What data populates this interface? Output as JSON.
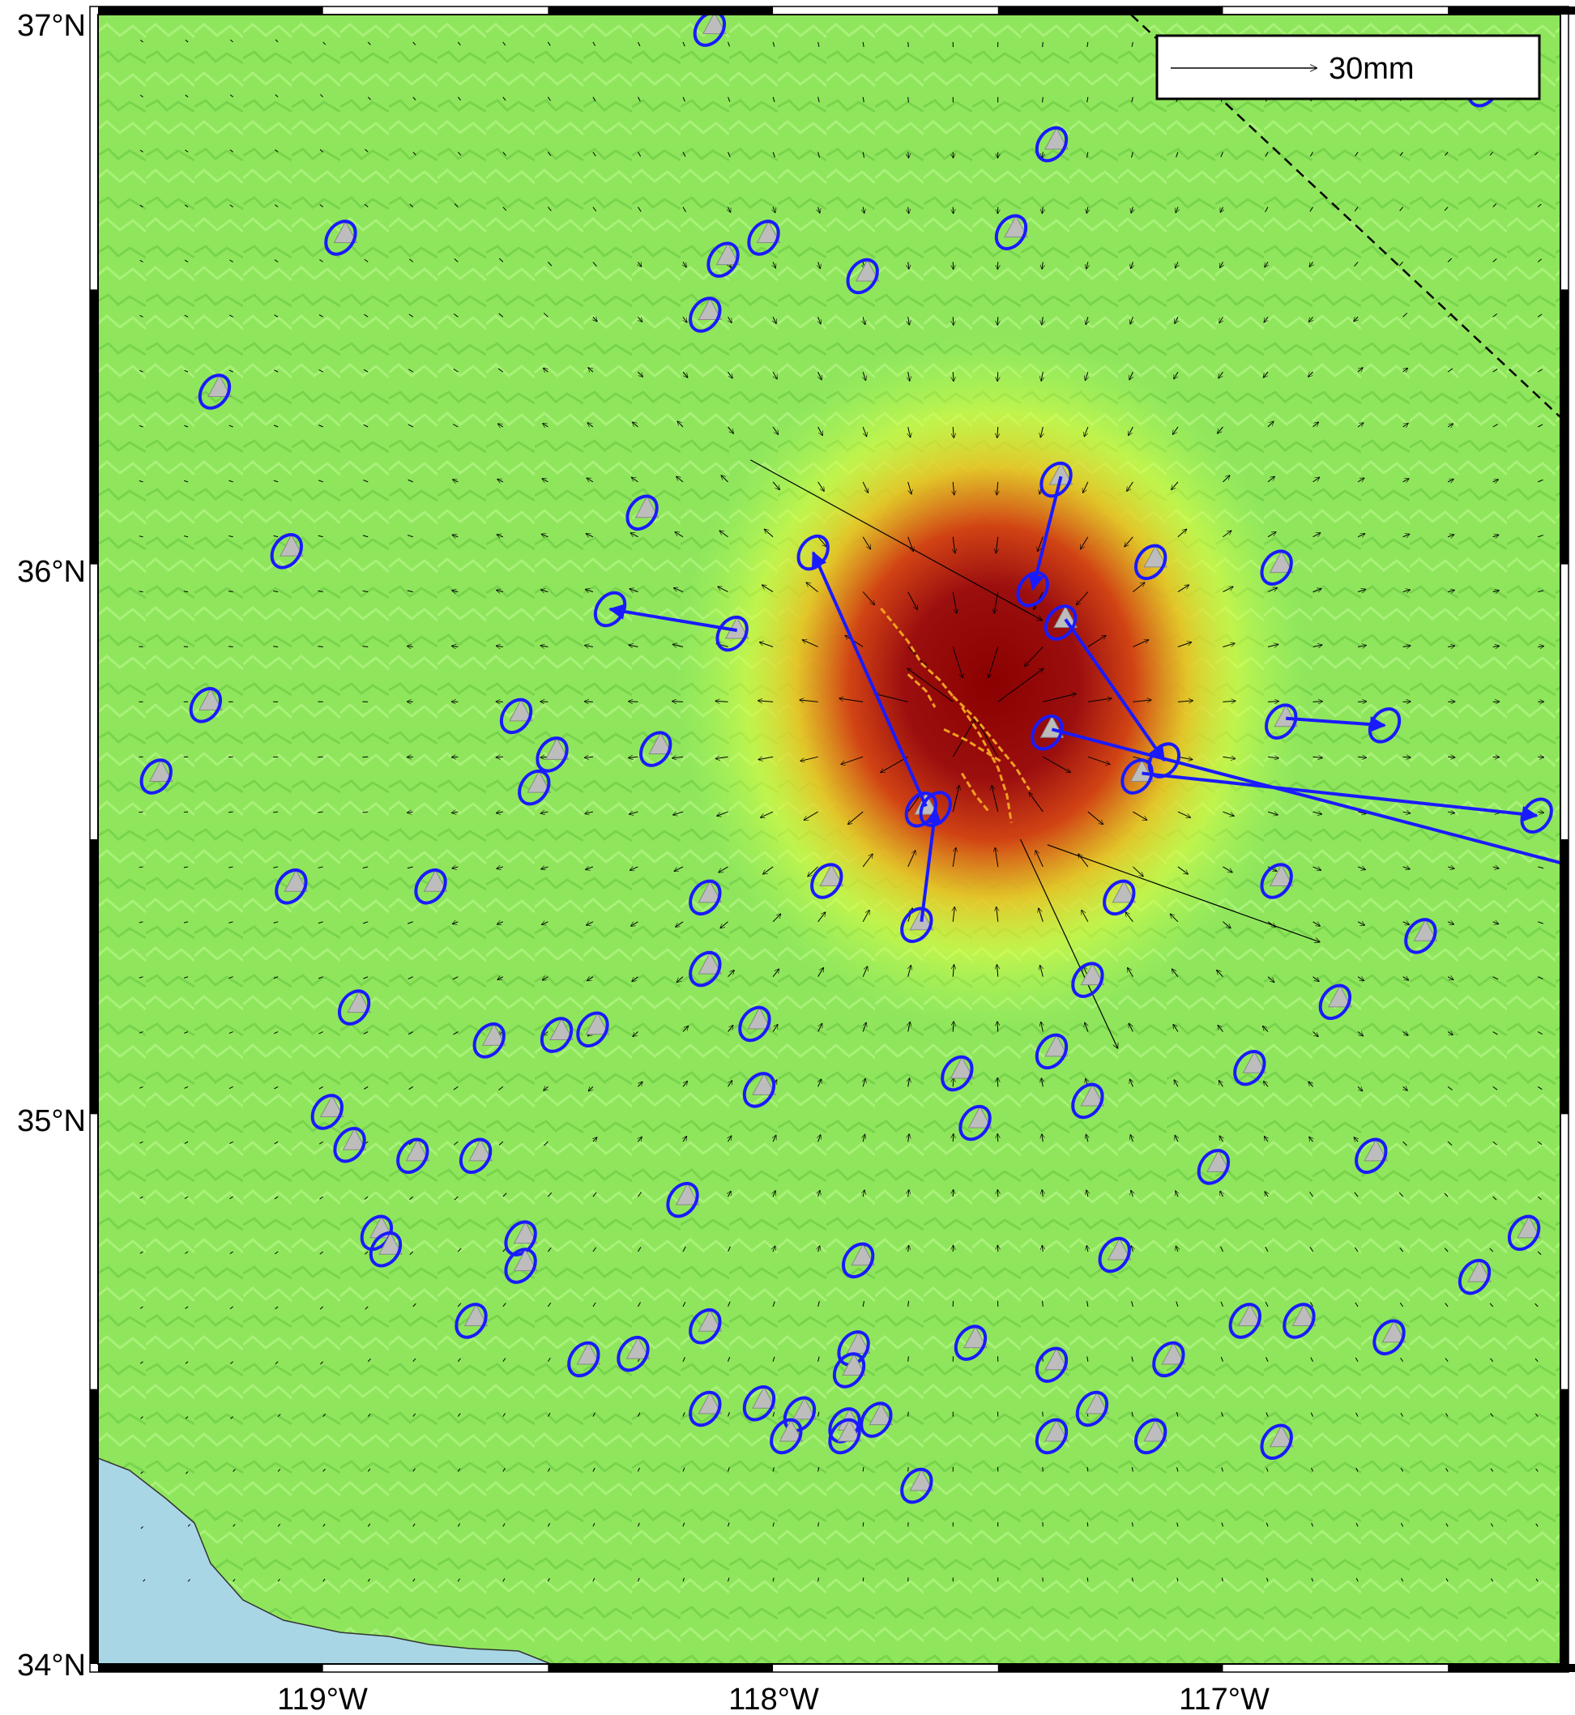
{
  "map": {
    "lon_range": [
      -119.5,
      -116.25
    ],
    "lat_range": [
      34.0,
      37.0
    ],
    "lat_labels": [
      "37°N",
      "36°N",
      "35°N",
      "34°N"
    ],
    "lon_labels": [
      "119°W",
      "118°W",
      "117°W"
    ],
    "scale_label": "30mm",
    "colors": {
      "land_base": "#8fe65c",
      "ocean": "#a9d6e5",
      "station": "#bdbdbd",
      "ellipse": "#1a1aff",
      "fault_trace": "#f0a020",
      "model_arrow": "#000000",
      "core_high": "#8b0000",
      "mid": "#cc2200",
      "low": "#ffff33"
    },
    "epicenter": {
      "lon": -117.55,
      "lat": 35.72
    }
  },
  "stations": [
    {
      "lon": -118.13,
      "lat": 36.98
    },
    {
      "lon": -117.37,
      "lat": 36.77
    },
    {
      "lon": -116.41,
      "lat": 36.87
    },
    {
      "lon": -118.95,
      "lat": 36.6
    },
    {
      "lon": -118.1,
      "lat": 36.56
    },
    {
      "lon": -118.01,
      "lat": 36.6
    },
    {
      "lon": -117.79,
      "lat": 36.53
    },
    {
      "lon": -117.46,
      "lat": 36.61
    },
    {
      "lon": -118.14,
      "lat": 36.46
    },
    {
      "lon": -119.23,
      "lat": 36.32
    },
    {
      "lon": -117.36,
      "lat": 36.16
    },
    {
      "lon": -118.28,
      "lat": 36.1
    },
    {
      "lon": -119.07,
      "lat": 36.03
    },
    {
      "lon": -117.15,
      "lat": 36.01
    },
    {
      "lon": -116.87,
      "lat": 36.0
    },
    {
      "lon": -118.08,
      "lat": 35.88
    },
    {
      "lon": -117.35,
      "lat": 35.9
    },
    {
      "lon": -119.25,
      "lat": 35.75
    },
    {
      "lon": -118.56,
      "lat": 35.73
    },
    {
      "lon": -116.86,
      "lat": 35.72
    },
    {
      "lon": -117.38,
      "lat": 35.7
    },
    {
      "lon": -118.48,
      "lat": 35.66
    },
    {
      "lon": -118.25,
      "lat": 35.67
    },
    {
      "lon": -119.36,
      "lat": 35.62
    },
    {
      "lon": -117.18,
      "lat": 35.62
    },
    {
      "lon": -118.52,
      "lat": 35.6
    },
    {
      "lon": -117.66,
      "lat": 35.56
    },
    {
      "lon": -117.87,
      "lat": 35.43
    },
    {
      "lon": -116.87,
      "lat": 35.43
    },
    {
      "lon": -119.06,
      "lat": 35.42
    },
    {
      "lon": -118.75,
      "lat": 35.42
    },
    {
      "lon": -117.22,
      "lat": 35.4
    },
    {
      "lon": -118.14,
      "lat": 35.4
    },
    {
      "lon": -117.67,
      "lat": 35.35
    },
    {
      "lon": -116.55,
      "lat": 35.33
    },
    {
      "lon": -117.29,
      "lat": 35.25
    },
    {
      "lon": -118.14,
      "lat": 35.27
    },
    {
      "lon": -116.74,
      "lat": 35.21
    },
    {
      "lon": -118.92,
      "lat": 35.2
    },
    {
      "lon": -118.03,
      "lat": 35.17
    },
    {
      "lon": -118.39,
      "lat": 35.16
    },
    {
      "lon": -118.47,
      "lat": 35.15
    },
    {
      "lon": -118.62,
      "lat": 35.14
    },
    {
      "lon": -117.37,
      "lat": 35.12
    },
    {
      "lon": -117.58,
      "lat": 35.08
    },
    {
      "lon": -116.93,
      "lat": 35.09
    },
    {
      "lon": -118.02,
      "lat": 35.05
    },
    {
      "lon": -117.29,
      "lat": 35.03
    },
    {
      "lon": -117.54,
      "lat": 34.99
    },
    {
      "lon": -118.98,
      "lat": 35.01
    },
    {
      "lon": -118.93,
      "lat": 34.95
    },
    {
      "lon": -118.79,
      "lat": 34.93
    },
    {
      "lon": -118.65,
      "lat": 34.93
    },
    {
      "lon": -117.01,
      "lat": 34.91
    },
    {
      "lon": -116.66,
      "lat": 34.93
    },
    {
      "lon": -118.19,
      "lat": 34.85
    },
    {
      "lon": -118.87,
      "lat": 34.79
    },
    {
      "lon": -118.85,
      "lat": 34.76
    },
    {
      "lon": -118.55,
      "lat": 34.78
    },
    {
      "lon": -118.55,
      "lat": 34.73
    },
    {
      "lon": -117.8,
      "lat": 34.74
    },
    {
      "lon": -117.23,
      "lat": 34.75
    },
    {
      "lon": -116.32,
      "lat": 34.79
    },
    {
      "lon": -116.43,
      "lat": 34.71
    },
    {
      "lon": -118.66,
      "lat": 34.63
    },
    {
      "lon": -118.14,
      "lat": 34.62
    },
    {
      "lon": -116.94,
      "lat": 34.63
    },
    {
      "lon": -116.82,
      "lat": 34.63
    },
    {
      "lon": -118.3,
      "lat": 34.57
    },
    {
      "lon": -118.41,
      "lat": 34.56
    },
    {
      "lon": -117.81,
      "lat": 34.58
    },
    {
      "lon": -117.55,
      "lat": 34.59
    },
    {
      "lon": -117.37,
      "lat": 34.55
    },
    {
      "lon": -117.11,
      "lat": 34.56
    },
    {
      "lon": -116.62,
      "lat": 34.6
    },
    {
      "lon": -117.82,
      "lat": 34.54
    },
    {
      "lon": -118.14,
      "lat": 34.47
    },
    {
      "lon": -118.02,
      "lat": 34.48
    },
    {
      "lon": -117.93,
      "lat": 34.46
    },
    {
      "lon": -117.83,
      "lat": 34.44
    },
    {
      "lon": -117.76,
      "lat": 34.45
    },
    {
      "lon": -117.28,
      "lat": 34.47
    },
    {
      "lon": -117.96,
      "lat": 34.42
    },
    {
      "lon": -117.83,
      "lat": 34.42
    },
    {
      "lon": -117.37,
      "lat": 34.42
    },
    {
      "lon": -117.15,
      "lat": 34.42
    },
    {
      "lon": -116.87,
      "lat": 34.41
    },
    {
      "lon": -117.67,
      "lat": 34.33
    }
  ],
  "observed_vectors": [
    {
      "lon": -117.36,
      "lat": 36.16,
      "ve": -2.0,
      "vn": -8.0
    },
    {
      "lon": -118.08,
      "lat": 35.88,
      "ve": -9.0,
      "vn": 1.5
    },
    {
      "lon": -117.35,
      "lat": 35.9,
      "ve": 7.0,
      "vn": -10.0
    },
    {
      "lon": -117.66,
      "lat": 35.56,
      "ve": -8.0,
      "vn": 18.0
    },
    {
      "lon": -117.38,
      "lat": 35.7,
      "ve": 80.0,
      "vn": -21.0
    },
    {
      "lon": -117.18,
      "lat": 35.62,
      "ve": 28.0,
      "vn": -3.0
    },
    {
      "lon": -116.86,
      "lat": 35.72,
      "ve": 7.0,
      "vn": -0.5
    },
    {
      "lon": -117.67,
      "lat": 35.35,
      "ve": 1.0,
      "vn": 8.0
    }
  ],
  "model_arrows": [
    {
      "lon": -118.05,
      "lat": 36.19,
      "ve": 60.0,
      "vn": -33.0
    },
    {
      "lon": -117.45,
      "lat": 35.5,
      "ve": 20.0,
      "vn": -43.0
    },
    {
      "lon": -117.39,
      "lat": 35.49,
      "ve": 56.0,
      "vn": -20.0
    }
  ],
  "fault_traces": [
    [
      [
        -117.76,
        35.92
      ],
      [
        -117.7,
        35.86
      ],
      [
        -117.67,
        35.82
      ],
      [
        -117.63,
        35.79
      ],
      [
        -117.6,
        35.76
      ]
    ],
    [
      [
        -117.6,
        35.76
      ],
      [
        -117.55,
        35.72
      ],
      [
        -117.51,
        35.68
      ],
      [
        -117.46,
        35.63
      ],
      [
        -117.43,
        35.59
      ]
    ],
    [
      [
        -117.62,
        35.7
      ],
      [
        -117.57,
        35.68
      ],
      [
        -117.53,
        35.66
      ],
      [
        -117.49,
        35.64
      ]
    ],
    [
      [
        -117.58,
        35.74
      ],
      [
        -117.54,
        35.69
      ],
      [
        -117.5,
        35.63
      ],
      [
        -117.48,
        35.58
      ],
      [
        -117.47,
        35.53
      ]
    ],
    [
      [
        -117.7,
        35.8
      ],
      [
        -117.66,
        35.77
      ],
      [
        -117.64,
        35.74
      ]
    ],
    [
      [
        -117.58,
        35.62
      ],
      [
        -117.55,
        35.58
      ],
      [
        -117.52,
        35.55
      ]
    ]
  ]
}
